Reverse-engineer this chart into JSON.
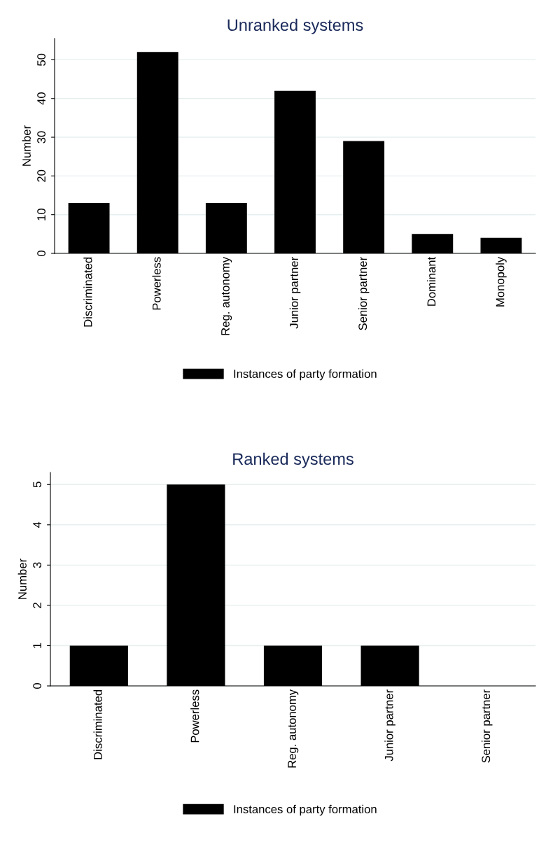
{
  "chart_data": [
    {
      "type": "bar",
      "title": "Unranked systems",
      "ylabel": "Number",
      "categories": [
        "Discriminated",
        "Powerless",
        "Reg. autonomy",
        "Junior partner",
        "Senior partner",
        "Dominant",
        "Monopoly"
      ],
      "series": [
        {
          "name": "Instances of party formation",
          "color": "#000000",
          "values": [
            13,
            52,
            13,
            42,
            29,
            5,
            4
          ]
        }
      ],
      "ylim": [
        0,
        55.5
      ],
      "yticks": [
        0,
        10,
        20,
        30,
        40,
        50
      ],
      "grid": "y",
      "legend": "bottom"
    },
    {
      "type": "bar",
      "title": "Ranked systems",
      "ylabel": "Number",
      "categories": [
        "Discriminated",
        "Powerless",
        "Reg. autonomy",
        "Junior partner",
        "Senior partner"
      ],
      "series": [
        {
          "name": "Instances of party formation",
          "color": "#000000",
          "values": [
            1,
            5,
            1,
            1,
            0
          ]
        }
      ],
      "ylim": [
        0,
        5.3
      ],
      "yticks": [
        0,
        1,
        2,
        3,
        4,
        5
      ],
      "grid": "y",
      "legend": "bottom"
    }
  ]
}
